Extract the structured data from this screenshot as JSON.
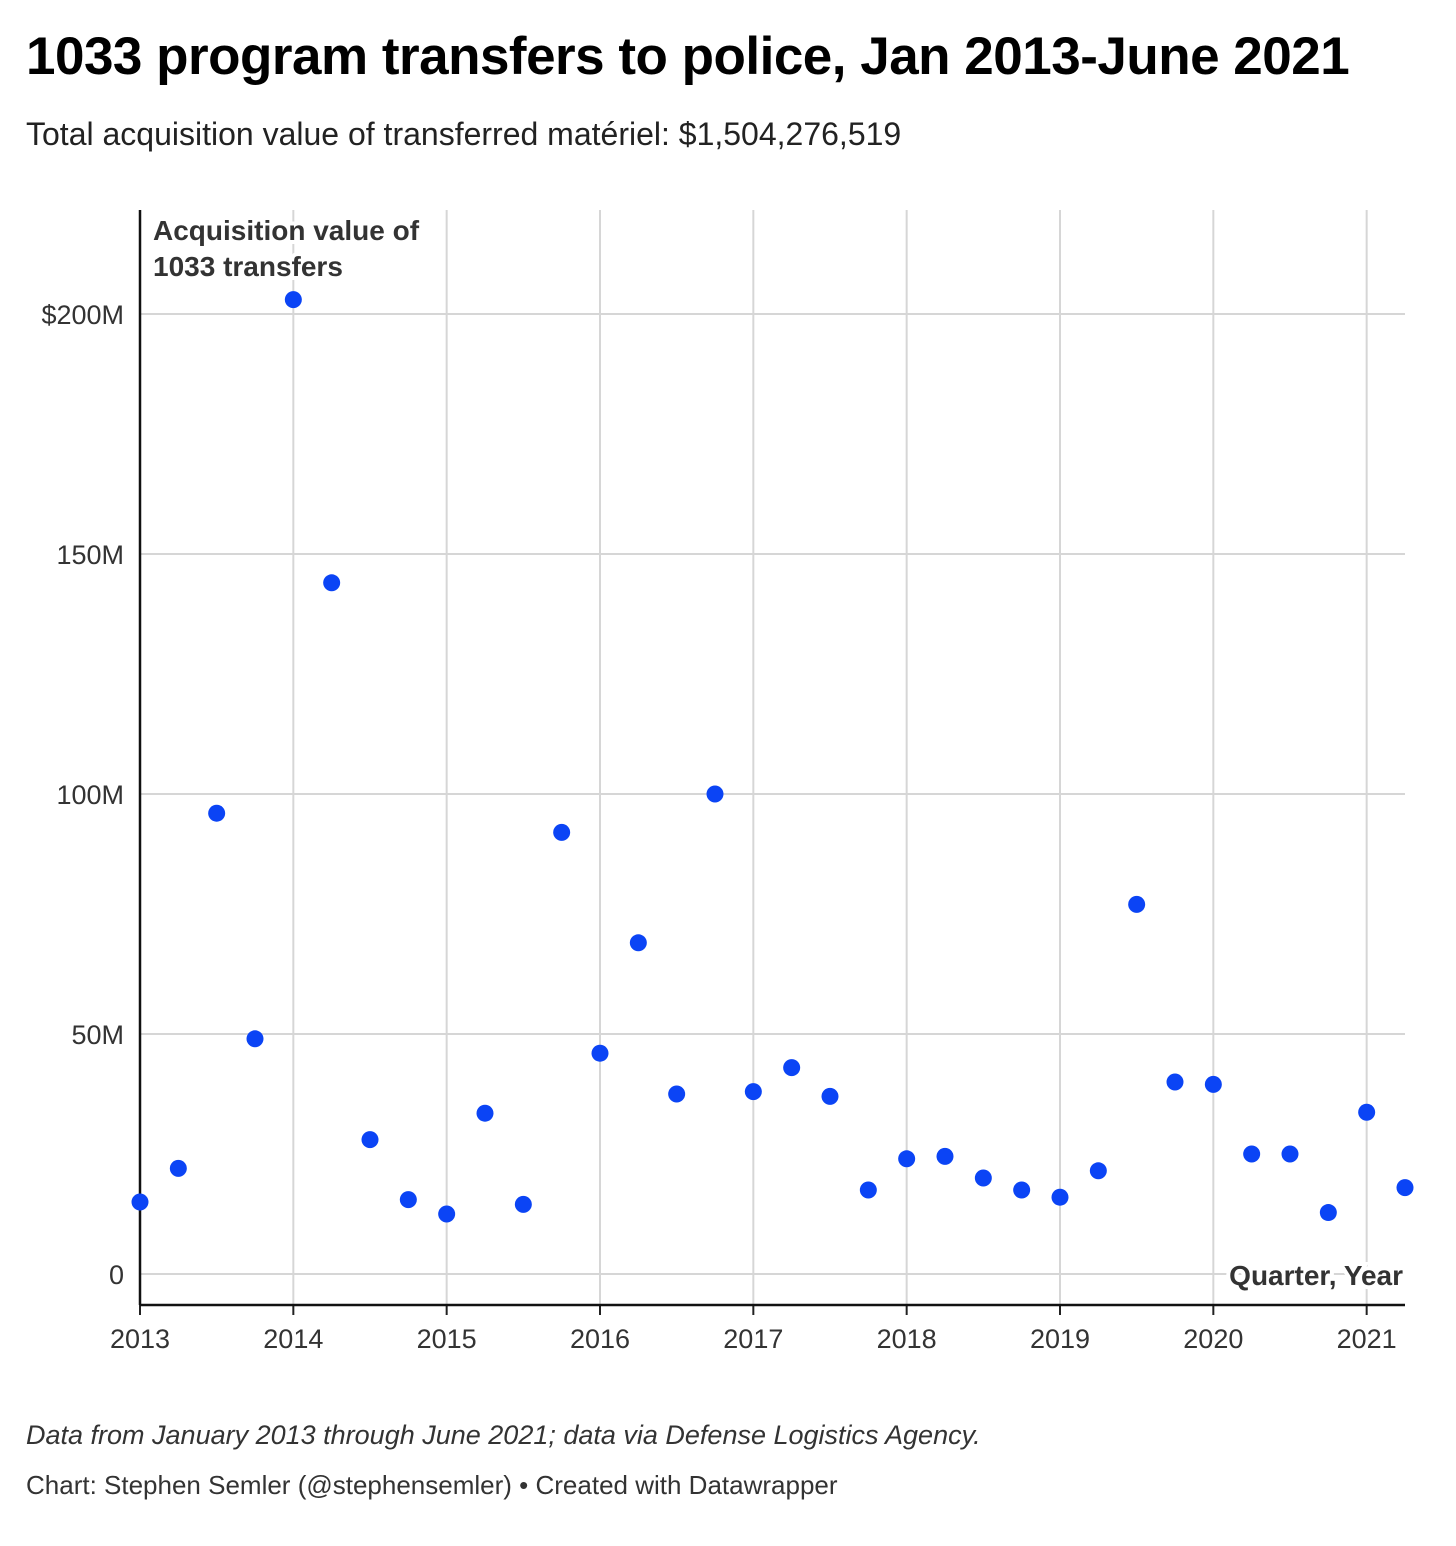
{
  "title": "1033 program transfers to police, Jan 2013-June 2021",
  "subtitle": "Total acquisition value of transferred matériel: $1,504,276,519",
  "chart_data": {
    "type": "scatter",
    "ylabel": "Acquisition value of\n1033 transfers",
    "xlabel": "Quarter, Year",
    "ylim": [
      0,
      220000000
    ],
    "xlim": [
      2013.0,
      2021.25
    ],
    "grid": true,
    "color": "#0b44f5",
    "yticks": [
      {
        "value": 0,
        "label": "0"
      },
      {
        "value": 50000000,
        "label": "50M"
      },
      {
        "value": 100000000,
        "label": "100M"
      },
      {
        "value": 150000000,
        "label": "150M"
      },
      {
        "value": 200000000,
        "label": "$200M"
      }
    ],
    "xticks": [
      {
        "value": 2013,
        "label": "2013"
      },
      {
        "value": 2014,
        "label": "2014"
      },
      {
        "value": 2015,
        "label": "2015"
      },
      {
        "value": 2016,
        "label": "2016"
      },
      {
        "value": 2017,
        "label": "2017"
      },
      {
        "value": 2018,
        "label": "2018"
      },
      {
        "value": 2019,
        "label": "2019"
      },
      {
        "value": 2020,
        "label": "2020"
      },
      {
        "value": 2021,
        "label": "2021"
      }
    ],
    "points": [
      {
        "x": 2013.0,
        "y": 15000000
      },
      {
        "x": 2013.25,
        "y": 22000000
      },
      {
        "x": 2013.5,
        "y": 96000000
      },
      {
        "x": 2013.75,
        "y": 49000000
      },
      {
        "x": 2014.0,
        "y": 203000000
      },
      {
        "x": 2014.25,
        "y": 144000000
      },
      {
        "x": 2014.5,
        "y": 28000000
      },
      {
        "x": 2014.75,
        "y": 15500000
      },
      {
        "x": 2015.0,
        "y": 12500000
      },
      {
        "x": 2015.25,
        "y": 33500000
      },
      {
        "x": 2015.5,
        "y": 14500000
      },
      {
        "x": 2015.75,
        "y": 92000000
      },
      {
        "x": 2016.0,
        "y": 46000000
      },
      {
        "x": 2016.25,
        "y": 69000000
      },
      {
        "x": 2016.5,
        "y": 37500000
      },
      {
        "x": 2016.75,
        "y": 100000000
      },
      {
        "x": 2017.0,
        "y": 38000000
      },
      {
        "x": 2017.25,
        "y": 43000000
      },
      {
        "x": 2017.5,
        "y": 37000000
      },
      {
        "x": 2017.75,
        "y": 17500000
      },
      {
        "x": 2018.0,
        "y": 24000000
      },
      {
        "x": 2018.25,
        "y": 24500000
      },
      {
        "x": 2018.5,
        "y": 20000000
      },
      {
        "x": 2018.75,
        "y": 17500000
      },
      {
        "x": 2019.0,
        "y": 16000000
      },
      {
        "x": 2019.25,
        "y": 21500000
      },
      {
        "x": 2019.5,
        "y": 77000000
      },
      {
        "x": 2019.75,
        "y": 40000000
      },
      {
        "x": 2020.0,
        "y": 39500000
      },
      {
        "x": 2020.25,
        "y": 25000000
      },
      {
        "x": 2020.5,
        "y": 25000000
      },
      {
        "x": 2020.75,
        "y": 12800000
      },
      {
        "x": 2021.0,
        "y": 33700000
      },
      {
        "x": 2021.25,
        "y": 18000000
      }
    ]
  },
  "footer": {
    "note": "Data from January 2013 through June 2021; data via Defense Logistics Agency.",
    "byline": "Chart: Stephen Semler (@stephensemler) • Created with Datawrapper"
  }
}
